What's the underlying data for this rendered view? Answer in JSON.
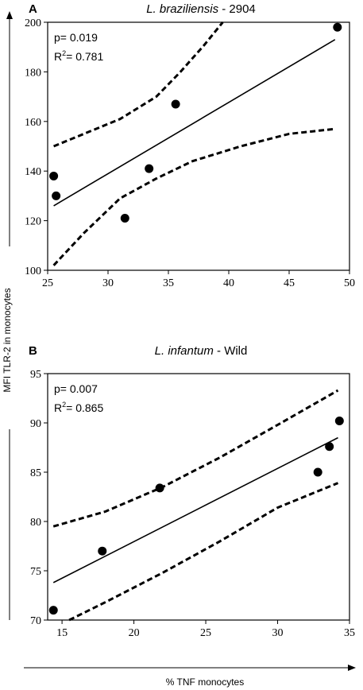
{
  "figure": {
    "shared_ylabel": "MFI TLR-2 in monocytes",
    "shared_xlabel": "% TNF monocytes"
  },
  "chart_data": [
    {
      "type": "scatter",
      "panel_letter": "A",
      "title_species": "L. braziliensis",
      "title_suffix": " - 2904",
      "stats": {
        "p": "p= 0.019",
        "r2_prefix": "R",
        "r2_sup": "2",
        "r2_value": "= 0.781"
      },
      "xlim": [
        25,
        50
      ],
      "ylim": [
        100,
        200
      ],
      "xticks": [
        25,
        30,
        35,
        40,
        45,
        50
      ],
      "yticks": [
        100,
        120,
        140,
        160,
        180,
        200
      ],
      "points": [
        {
          "x": 25.5,
          "y": 138
        },
        {
          "x": 25.7,
          "y": 130
        },
        {
          "x": 31.4,
          "y": 121
        },
        {
          "x": 33.4,
          "y": 141
        },
        {
          "x": 35.6,
          "y": 167
        },
        {
          "x": 49.0,
          "y": 198
        }
      ],
      "fit_line": [
        {
          "x": 25.5,
          "y": 126
        },
        {
          "x": 48.8,
          "y": 193
        }
      ],
      "ci_upper": [
        {
          "x": 25.5,
          "y": 150
        },
        {
          "x": 28,
          "y": 155
        },
        {
          "x": 31,
          "y": 161
        },
        {
          "x": 34,
          "y": 170
        },
        {
          "x": 36,
          "y": 180
        },
        {
          "x": 38,
          "y": 191
        },
        {
          "x": 39.5,
          "y": 200
        }
      ],
      "ci_lower": [
        {
          "x": 25.5,
          "y": 102
        },
        {
          "x": 28,
          "y": 115
        },
        {
          "x": 31,
          "y": 129
        },
        {
          "x": 34,
          "y": 137
        },
        {
          "x": 37,
          "y": 144
        },
        {
          "x": 41,
          "y": 150
        },
        {
          "x": 45,
          "y": 155
        },
        {
          "x": 48.8,
          "y": 157
        }
      ]
    },
    {
      "type": "scatter",
      "panel_letter": "B",
      "title_species": "L. infantum",
      "title_suffix": " - Wild",
      "stats": {
        "p": "p= 0.007",
        "r2_prefix": "R",
        "r2_sup": "2",
        "r2_value": "= 0.865"
      },
      "xlim": [
        14,
        35
      ],
      "ylim": [
        70,
        95
      ],
      "xticks": [
        15,
        20,
        25,
        30,
        35
      ],
      "yticks": [
        70,
        75,
        80,
        85,
        90,
        95
      ],
      "points": [
        {
          "x": 14.4,
          "y": 71.0
        },
        {
          "x": 17.8,
          "y": 77.0
        },
        {
          "x": 21.8,
          "y": 83.4
        },
        {
          "x": 32.8,
          "y": 85.0
        },
        {
          "x": 33.6,
          "y": 87.6
        },
        {
          "x": 34.3,
          "y": 90.2
        }
      ],
      "fit_line": [
        {
          "x": 14.4,
          "y": 73.8
        },
        {
          "x": 34.2,
          "y": 88.5
        }
      ],
      "ci_upper": [
        {
          "x": 14.4,
          "y": 79.5
        },
        {
          "x": 18,
          "y": 81
        },
        {
          "x": 22,
          "y": 83.5
        },
        {
          "x": 26,
          "y": 86.5
        },
        {
          "x": 30,
          "y": 89.8
        },
        {
          "x": 34.2,
          "y": 93.3
        }
      ],
      "ci_lower": [
        {
          "x": 15.5,
          "y": 70
        },
        {
          "x": 18,
          "y": 71.8
        },
        {
          "x": 22,
          "y": 74.8
        },
        {
          "x": 26,
          "y": 78
        },
        {
          "x": 30,
          "y": 81.4
        },
        {
          "x": 34.2,
          "y": 83.9
        }
      ]
    }
  ]
}
